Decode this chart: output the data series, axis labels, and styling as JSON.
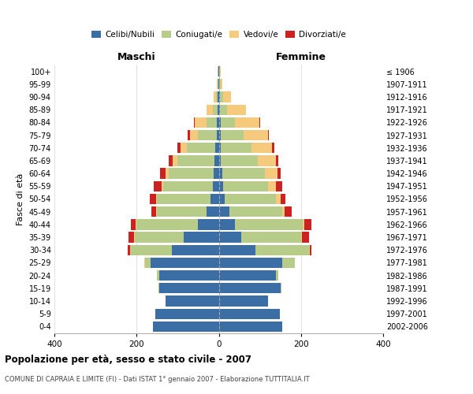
{
  "age_groups": [
    "0-4",
    "5-9",
    "10-14",
    "15-19",
    "20-24",
    "25-29",
    "30-34",
    "35-39",
    "40-44",
    "45-49",
    "50-54",
    "55-59",
    "60-64",
    "65-69",
    "70-74",
    "75-79",
    "80-84",
    "85-89",
    "90-94",
    "95-99",
    "100+"
  ],
  "birth_years": [
    "2002-2006",
    "1997-2001",
    "1992-1996",
    "1987-1991",
    "1982-1986",
    "1977-1981",
    "1972-1976",
    "1967-1971",
    "1962-1966",
    "1957-1961",
    "1952-1956",
    "1947-1951",
    "1942-1946",
    "1937-1941",
    "1932-1936",
    "1927-1931",
    "1922-1926",
    "1917-1921",
    "1912-1916",
    "1907-1911",
    "≤ 1906"
  ],
  "colors": {
    "celibi": "#3a6ea5",
    "coniugati": "#b8cc8a",
    "vedovi": "#f6ca7c",
    "divorziati": "#cc2222"
  },
  "maschi": {
    "celibi": [
      160,
      155,
      130,
      145,
      145,
      165,
      115,
      85,
      50,
      30,
      20,
      15,
      12,
      10,
      8,
      5,
      4,
      3,
      2,
      1,
      1
    ],
    "coniugati": [
      0,
      0,
      0,
      2,
      5,
      15,
      100,
      120,
      150,
      120,
      130,
      120,
      110,
      90,
      70,
      45,
      25,
      12,
      5,
      2,
      1
    ],
    "vedovi": [
      0,
      0,
      0,
      0,
      0,
      1,
      1,
      2,
      2,
      2,
      2,
      5,
      8,
      12,
      15,
      20,
      30,
      15,
      5,
      1,
      0
    ],
    "divorziati": [
      0,
      0,
      0,
      0,
      0,
      0,
      5,
      12,
      12,
      12,
      15,
      18,
      12,
      10,
      8,
      5,
      1,
      0,
      0,
      0,
      0
    ]
  },
  "femmine": {
    "nubili": [
      155,
      148,
      120,
      150,
      140,
      155,
      90,
      55,
      40,
      25,
      15,
      10,
      8,
      5,
      5,
      5,
      4,
      3,
      2,
      1,
      1
    ],
    "coniugate": [
      0,
      0,
      0,
      2,
      5,
      30,
      130,
      145,
      165,
      130,
      125,
      110,
      105,
      90,
      75,
      55,
      35,
      18,
      8,
      3,
      1
    ],
    "vedove": [
      0,
      0,
      0,
      0,
      0,
      1,
      1,
      2,
      3,
      5,
      10,
      20,
      30,
      45,
      50,
      60,
      60,
      45,
      20,
      5,
      2
    ],
    "divorziate": [
      0,
      0,
      0,
      0,
      0,
      0,
      5,
      18,
      18,
      18,
      12,
      15,
      8,
      5,
      5,
      2,
      1,
      0,
      0,
      0,
      0
    ]
  },
  "xlim": 400,
  "title": "Popolazione per età, sesso e stato civile - 2007",
  "subtitle": "COMUNE DI CAPRAIA E LIMITE (FI) - Dati ISTAT 1° gennaio 2007 - Elaborazione TUTTITALIA.IT",
  "xlabel_left": "Maschi",
  "xlabel_right": "Femmine",
  "ylabel_left": "Fasce di età",
  "legend_labels": [
    "Celibi/Nubili",
    "Coniugati/e",
    "Vedovi/e",
    "Divorziati/e"
  ],
  "xticks": [
    -400,
    -200,
    0,
    200,
    400
  ],
  "background_color": "#ffffff",
  "grid_color": "#dddddd",
  "spine_color": "#aaaaaa"
}
